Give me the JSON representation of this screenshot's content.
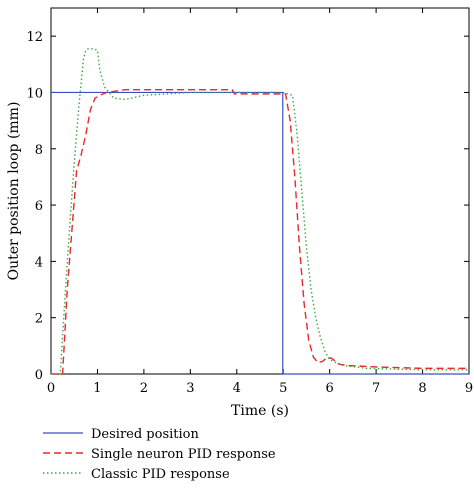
{
  "chart_data": {
    "type": "line",
    "xlabel": "Time (s)",
    "ylabel": "Outer position loop (mm)",
    "xlim": [
      0,
      9
    ],
    "ylim": [
      0,
      13
    ],
    "xticks": [
      0,
      1,
      2,
      3,
      4,
      5,
      6,
      7,
      8,
      9
    ],
    "yticks": [
      0,
      2,
      4,
      6,
      8,
      10,
      12
    ],
    "grid": false,
    "legend_position": "below",
    "series": [
      {
        "name": "Desired position",
        "color": "#3b4fc4",
        "dash": "solid",
        "x": [
          0,
          4.99,
          4.99,
          9
        ],
        "y": [
          10,
          10,
          0,
          0
        ]
      },
      {
        "name": "Single neuron PID response",
        "color": "#e8282a",
        "dash": "dashed",
        "x": [
          0,
          0.25,
          0.35,
          0.55,
          0.65,
          0.75,
          0.85,
          0.95,
          1.05,
          1.2,
          1.4,
          1.6,
          2.0,
          3.0,
          3.9,
          3.95,
          4.5,
          5.05,
          5.15,
          5.25,
          5.35,
          5.45,
          5.55,
          5.65,
          5.75,
          5.85,
          5.95,
          6.05,
          6.2,
          6.4,
          7.0,
          8.0,
          9.0
        ],
        "y": [
          0,
          0,
          3.0,
          7.2,
          7.8,
          8.5,
          9.4,
          9.8,
          9.9,
          10.0,
          10.05,
          10.1,
          10.1,
          10.1,
          10.1,
          9.95,
          9.95,
          9.95,
          9.0,
          7.0,
          4.5,
          2.5,
          1.2,
          0.6,
          0.4,
          0.45,
          0.6,
          0.55,
          0.35,
          0.3,
          0.25,
          0.2,
          0.2
        ]
      },
      {
        "name": "Classic PID response",
        "color": "#3fa83f",
        "dash": "dotted",
        "x": [
          0,
          0.2,
          0.35,
          0.5,
          0.6,
          0.7,
          0.75,
          0.8,
          0.9,
          1.0,
          1.05,
          1.15,
          1.35,
          1.6,
          2.0,
          3.0,
          4.0,
          5.0,
          5.2,
          5.3,
          5.4,
          5.5,
          5.6,
          5.7,
          5.8,
          5.9,
          6.0,
          6.3,
          6.8,
          8.0,
          9.0
        ],
        "y": [
          0,
          0,
          4.0,
          7.5,
          9.5,
          11.2,
          11.5,
          11.55,
          11.55,
          11.5,
          10.8,
          10.2,
          9.8,
          9.75,
          9.9,
          10.0,
          10.0,
          10.0,
          9.9,
          8.5,
          6.5,
          4.5,
          3.0,
          2.0,
          1.3,
          0.8,
          0.5,
          0.3,
          0.2,
          0.15,
          0.15
        ]
      }
    ]
  }
}
